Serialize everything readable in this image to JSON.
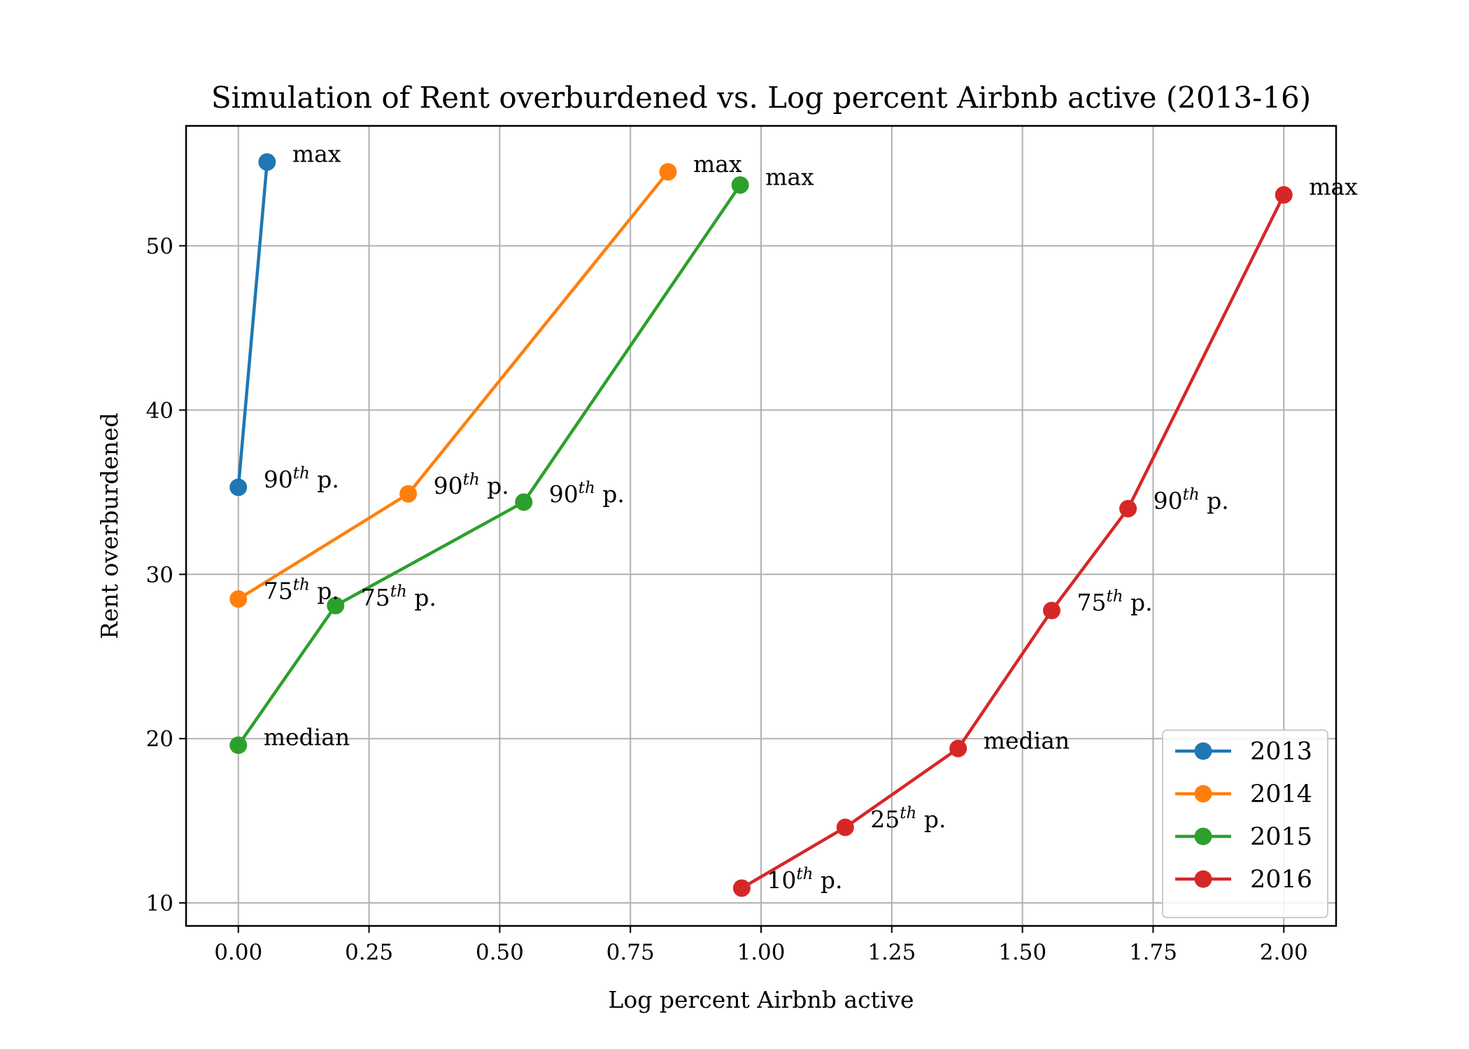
{
  "chart_data": {
    "type": "line",
    "title": "Simulation of Rent overburdened vs. Log percent Airbnb active (2013-16)",
    "xlabel": "Log percent Airbnb active",
    "ylabel": "Rent overburdened",
    "xlim": [
      -0.1,
      2.1
    ],
    "ylim": [
      8.6,
      57.3
    ],
    "xticks": [
      0.0,
      0.25,
      0.5,
      0.75,
      1.0,
      1.25,
      1.5,
      1.75,
      2.0
    ],
    "xtick_labels": [
      "0.00",
      "0.25",
      "0.50",
      "0.75",
      "1.00",
      "1.25",
      "1.50",
      "1.75",
      "2.00"
    ],
    "yticks": [
      10,
      20,
      30,
      40,
      50
    ],
    "ytick_labels": [
      "10",
      "20",
      "30",
      "40",
      "50"
    ],
    "grid": true,
    "legend_position": "lower-right",
    "series": [
      {
        "name": "2013",
        "color": "#1f77b4",
        "points": [
          {
            "x": 0.0,
            "y": 35.3,
            "base": "90",
            "sup": "th",
            "suffix": " p."
          },
          {
            "x": 0.055,
            "y": 55.1,
            "base": "max",
            "sup": "",
            "suffix": ""
          }
        ]
      },
      {
        "name": "2014",
        "color": "#ff7f0e",
        "points": [
          {
            "x": 0.0,
            "y": 28.5,
            "base": "75",
            "sup": "th",
            "suffix": " p."
          },
          {
            "x": 0.325,
            "y": 34.9,
            "base": "90",
            "sup": "th",
            "suffix": " p."
          },
          {
            "x": 0.822,
            "y": 54.5,
            "base": "max",
            "sup": "",
            "suffix": ""
          }
        ]
      },
      {
        "name": "2015",
        "color": "#2ca02c",
        "points": [
          {
            "x": 0.0,
            "y": 19.6,
            "base": "median",
            "sup": "",
            "suffix": ""
          },
          {
            "x": 0.186,
            "y": 28.1,
            "base": "75",
            "sup": "th",
            "suffix": " p."
          },
          {
            "x": 0.546,
            "y": 34.4,
            "base": "90",
            "sup": "th",
            "suffix": " p."
          },
          {
            "x": 0.96,
            "y": 53.7,
            "base": "max",
            "sup": "",
            "suffix": ""
          }
        ]
      },
      {
        "name": "2016",
        "color": "#d62728",
        "points": [
          {
            "x": 0.963,
            "y": 10.9,
            "base": "10",
            "sup": "th",
            "suffix": " p."
          },
          {
            "x": 1.161,
            "y": 14.6,
            "base": "25",
            "sup": "th",
            "suffix": " p."
          },
          {
            "x": 1.377,
            "y": 19.4,
            "base": "median",
            "sup": "",
            "suffix": ""
          },
          {
            "x": 1.556,
            "y": 27.8,
            "base": "75",
            "sup": "th",
            "suffix": " p."
          },
          {
            "x": 1.702,
            "y": 34.0,
            "base": "90",
            "sup": "th",
            "suffix": " p."
          },
          {
            "x": 2.0,
            "y": 53.1,
            "base": "max",
            "sup": "",
            "suffix": ""
          }
        ]
      }
    ]
  }
}
